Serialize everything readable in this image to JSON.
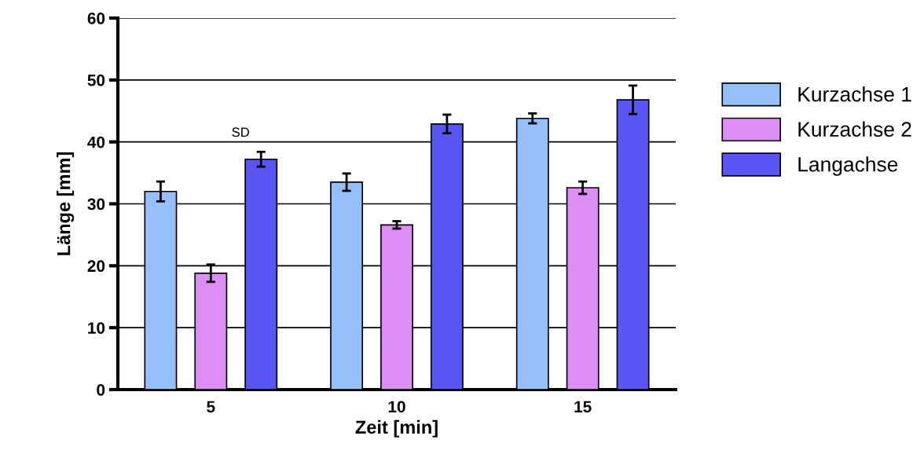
{
  "chart_data": {
    "type": "bar",
    "xlabel": "Zeit [min]",
    "ylabel": "Länge [mm]",
    "categories": [
      "5",
      "10",
      "15"
    ],
    "series": [
      {
        "name": "Kurzachse 1",
        "color": "#94bff8",
        "values": [
          32.0,
          33.5,
          43.8
        ],
        "errors": [
          1.6,
          1.4,
          0.8
        ]
      },
      {
        "name": "Kurzachse 2",
        "color": "#dc8ef5",
        "values": [
          18.8,
          26.6,
          32.6
        ],
        "errors": [
          1.4,
          0.6,
          1.0
        ]
      },
      {
        "name": "Langachse",
        "color": "#5a55f5",
        "values": [
          37.2,
          42.9,
          46.8
        ],
        "errors": [
          1.2,
          1.5,
          2.3
        ]
      }
    ],
    "ylim": [
      0,
      60
    ],
    "yticks": [
      0,
      10,
      20,
      30,
      40,
      50,
      60
    ],
    "grid": "y",
    "legend": "right",
    "annotations": [
      "SD"
    ]
  }
}
